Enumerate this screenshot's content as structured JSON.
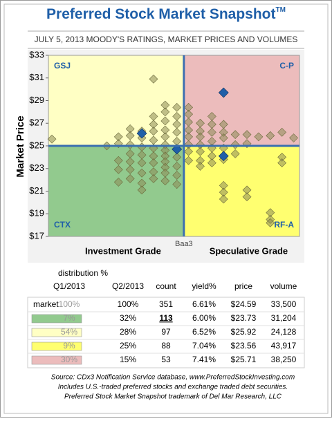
{
  "chart_data": {
    "type": "scatter",
    "title": "Preferred Stock Market Snapshot",
    "title_mark": "TM",
    "subtitle": "JULY 5, 2013  MOODY'S RATINGS, MARKET PRICES AND VOLUMES",
    "ylabel": "Market Price",
    "xlabel_left": "Investment Grade",
    "xlabel_divider": "Baa3",
    "xlabel_right": "Speculative Grade",
    "xlim": [
      0,
      21.5
    ],
    "divider_x": 11.6,
    "divider_y": 25,
    "ylim": [
      17,
      33
    ],
    "yticks": [
      {
        "value": 17,
        "label": "$17"
      },
      {
        "value": 19,
        "label": "$19"
      },
      {
        "value": 21,
        "label": "$21"
      },
      {
        "value": 23,
        "label": "$23"
      },
      {
        "value": 25,
        "label": "$25"
      },
      {
        "value": 27,
        "label": "$27"
      },
      {
        "value": 29,
        "label": "$29"
      },
      {
        "value": 31,
        "label": "$31"
      },
      {
        "value": 33,
        "label": "$33"
      }
    ],
    "quadrants": [
      {
        "label": "GSJ",
        "color": "#ffffc4",
        "label_color": "#1f5fa8"
      },
      {
        "label": "C-P",
        "color": "#ecbcbc",
        "label_color": "#1f5fa8"
      },
      {
        "label": "CTX",
        "color": "#92ca8e",
        "label_color": "#1f5fa8"
      },
      {
        "label": "RF-A",
        "color": "#ffff70",
        "label_color": "#1f5fa8"
      }
    ],
    "series": [
      {
        "color": "#8c8a55",
        "x": [
          0.3,
          5,
          6,
          6,
          6,
          6,
          6,
          7,
          7,
          7,
          7,
          7,
          7,
          7,
          8,
          8,
          8,
          8,
          8,
          8,
          8,
          8,
          9,
          9,
          9,
          9,
          9,
          9,
          9,
          9,
          9,
          9,
          10,
          10,
          10,
          10,
          10,
          10,
          10,
          10,
          10,
          10,
          10,
          10,
          11,
          11,
          11,
          11,
          11,
          11,
          11,
          11,
          11,
          11,
          12,
          12,
          12,
          12,
          12,
          12,
          12,
          12,
          13,
          13,
          13,
          13,
          13,
          13,
          13,
          14,
          14,
          14,
          14,
          14,
          14,
          14,
          15,
          15,
          15,
          15,
          15,
          15,
          15,
          15,
          16,
          16,
          16,
          17,
          17,
          17,
          17,
          18,
          19,
          19,
          19,
          19,
          20,
          20,
          20,
          21
        ],
        "values": [
          25.6,
          25.0,
          25.8,
          25.2,
          23.7,
          22.9,
          21.8,
          26.5,
          25.9,
          25.1,
          24.3,
          23.6,
          22.9,
          22.1,
          26.3,
          25.7,
          24.9,
          24.2,
          23.5,
          22.6,
          21.7,
          21.1,
          30.9,
          27.6,
          26.9,
          26.3,
          25.5,
          24.8,
          24.1,
          23.5,
          22.7,
          22.1,
          28.6,
          28.0,
          27.2,
          26.4,
          25.8,
          25.1,
          24.6,
          24.1,
          23.6,
          23.1,
          22.6,
          21.9,
          28.4,
          27.6,
          26.9,
          26.2,
          25.4,
          24.7,
          24.0,
          23.2,
          22.4,
          21.6,
          28.4,
          27.8,
          27.1,
          26.4,
          25.8,
          25.1,
          24.5,
          23.7,
          27.0,
          26.3,
          25.8,
          25.1,
          24.5,
          23.7,
          23.2,
          27.6,
          26.9,
          26.2,
          25.4,
          24.8,
          24.1,
          23.5,
          26.9,
          26.2,
          25.7,
          24.8,
          23.8,
          21.5,
          20.9,
          20.3,
          26.0,
          25.1,
          24.3,
          26.0,
          25.2,
          21.1,
          20.5,
          25.8,
          25.9,
          19.1,
          18.5,
          18.2,
          26.2,
          24.0,
          23.5,
          25.7
        ]
      },
      {
        "color": "#1f5fa8",
        "x": [
          8,
          11,
          15,
          15
        ],
        "values": [
          26.1,
          24.7,
          29.7,
          24.1
        ]
      }
    ]
  },
  "table": {
    "header_group": "distribution %",
    "headers": [
      "Q1/2013",
      "Q2/2013",
      "count",
      "yield%",
      "price",
      "volume"
    ],
    "first_label": "market",
    "swatches": [
      "#92ca8e",
      "#ffffc4",
      "#ffff70",
      "#ecbcbc"
    ],
    "rows": [
      [
        "100%",
        "100%",
        "351",
        "6.61%",
        "$24.59",
        "33,500"
      ],
      [
        "7%",
        "32%",
        "113",
        "6.00%",
        "$23.73",
        "31,204"
      ],
      [
        "54%",
        "28%",
        "97",
        "6.52%",
        "$25.92",
        "24,128"
      ],
      [
        "9%",
        "25%",
        "88",
        "7.04%",
        "$23.56",
        "43,917"
      ],
      [
        "30%",
        "15%",
        "53",
        "7.41%",
        "$25.71",
        "38,250"
      ]
    ]
  },
  "footer": [
    "Source:  CDx3 Notification Service database, www.PreferredStockInvesting.com",
    "Includes U.S.-traded preferred stocks and exchange traded debt securities.",
    "Preferred Stock Market Snapshot trademark of Del Mar Research, LLC"
  ]
}
